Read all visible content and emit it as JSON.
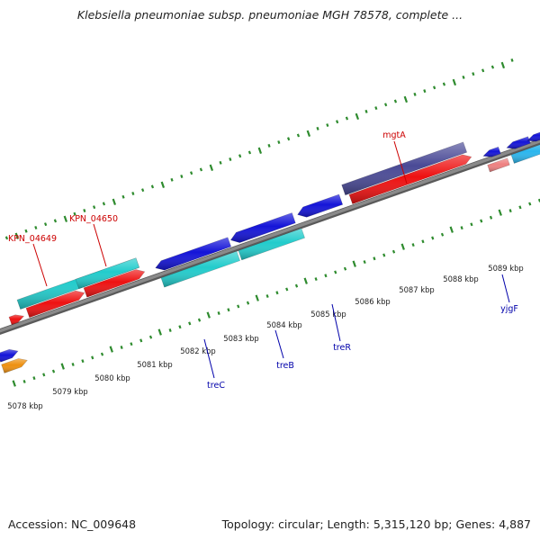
{
  "title": "Klebsiella pneumoniae subsp. pneumoniae MGH 78578, complete ...",
  "footer": {
    "accession": "Accession: NC_009648",
    "topology": "Topology: circular;",
    "length": "Length: 5,315,120 bp;",
    "genes": "Genes: 4,887"
  },
  "colors": {
    "backbone": "#8a8a8a",
    "tick": "#2e8b2e",
    "blue": "#1414d8",
    "cyan": "#22cccc",
    "red": "#ee1111",
    "purple": "#4a4a96",
    "skyblue": "#2ab6ee",
    "pink": "#ee8080",
    "orange": "#ee9010",
    "label_red": "#cc0000",
    "label_blue": "#0000aa"
  },
  "axis_labels": [
    "5078 kbp",
    "5079 kbp",
    "5080 kbp",
    "5081 kbp",
    "5082 kbp",
    "5083 kbp",
    "5084 kbp",
    "5085 kbp",
    "5086 kbp",
    "5087 kbp",
    "5088 kbp",
    "5089 kbp"
  ],
  "gene_labels": [
    {
      "text": "KPN_04649",
      "color": "label_red",
      "name": "gene-label-kpn-04649"
    },
    {
      "text": "KPN_04650",
      "color": "label_red",
      "name": "gene-label-kpn-04650"
    },
    {
      "text": "mgtA",
      "color": "label_red",
      "name": "gene-label-mgta"
    },
    {
      "text": "treC",
      "color": "label_blue",
      "name": "gene-label-trec"
    },
    {
      "text": "treB",
      "color": "label_blue",
      "name": "gene-label-treb"
    },
    {
      "text": "treR",
      "color": "label_blue",
      "name": "gene-label-trer"
    },
    {
      "text": "yjgF",
      "color": "label_blue",
      "name": "gene-label-yjgf"
    }
  ]
}
